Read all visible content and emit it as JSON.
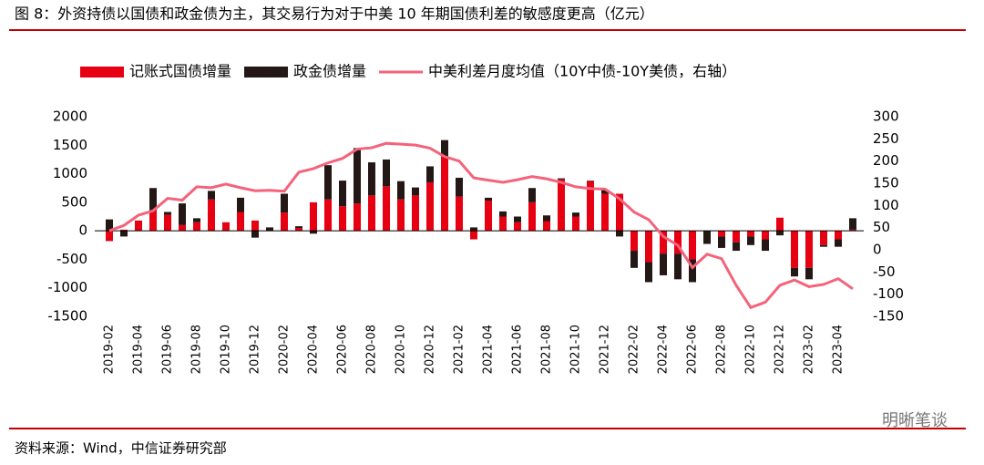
{
  "chart_data": {
    "type": "bar",
    "title": "图 8：外资持债以国债和政金债为主，其交易行为对于中美 10 年期国债利差的敏感度更高（亿元）",
    "source": "资料来源：Wind，中信证券研究部",
    "watermark": "明晰笔谈",
    "stacked": true,
    "categories": [
      "2019-02",
      null,
      "2019-04",
      null,
      "2019-06",
      null,
      "2019-08",
      null,
      "2019-10",
      null,
      "2019-12",
      null,
      "2020-02",
      null,
      "2020-04",
      null,
      "2020-06",
      null,
      "2020-08",
      null,
      "2020-10",
      null,
      "2020-12",
      null,
      "2021-02",
      null,
      "2021-04",
      null,
      "2021-06",
      null,
      "2021-08",
      null,
      "2021-10",
      null,
      "2021-12",
      null,
      "2022-02",
      null,
      "2022-04",
      null,
      "2022-06",
      null,
      "2022-08",
      null,
      "2022-10",
      null,
      "2022-12",
      null,
      "2023-02",
      null,
      "2023-04",
      null
    ],
    "series": [
      {
        "name": "记账式国债增量",
        "color": "#e60012",
        "type": "bar",
        "values": [
          -180,
          20,
          180,
          350,
          280,
          100,
          150,
          550,
          150,
          330,
          180,
          0,
          320,
          50,
          500,
          550,
          430,
          480,
          620,
          780,
          550,
          620,
          850,
          1300,
          600,
          -150,
          530,
          250,
          150,
          500,
          170,
          900,
          250,
          870,
          650,
          650,
          -350,
          -550,
          -400,
          -400,
          -500,
          0,
          -100,
          -200,
          -100,
          -150,
          230,
          -650,
          -650,
          -250,
          -150,
          20
        ]
      },
      {
        "name": "政金债增量",
        "color": "#231815",
        "type": "bar",
        "values": [
          200,
          -100,
          0,
          400,
          50,
          380,
          70,
          150,
          0,
          250,
          -120,
          60,
          330,
          30,
          -50,
          600,
          450,
          970,
          580,
          470,
          320,
          140,
          280,
          290,
          330,
          60,
          50,
          90,
          100,
          250,
          100,
          20,
          70,
          10,
          70,
          -100,
          -300,
          -350,
          -380,
          -450,
          -400,
          -230,
          -200,
          -150,
          -150,
          -200,
          -80,
          -150,
          -200,
          -30,
          -130,
          200
        ]
      },
      {
        "name": "中美利差月度均值（10Y中债-10Y美债，右轴）",
        "color": "#f4637b",
        "type": "line",
        "axis": "y2",
        "values": [
          43,
          55,
          78,
          88,
          116,
          112,
          142,
          140,
          148,
          140,
          133,
          134,
          132,
          175,
          183,
          196,
          206,
          227,
          230,
          240,
          238,
          236,
          229,
          210,
          200,
          162,
          157,
          152,
          158,
          165,
          160,
          152,
          142,
          138,
          137,
          115,
          85,
          68,
          30,
          10,
          -40,
          -10,
          -20,
          -80,
          -130,
          -118,
          -80,
          -68,
          -83,
          -78,
          -65,
          -88
        ]
      }
    ],
    "ylim": [
      -1500,
      2000
    ],
    "yticks": [
      -1500,
      -1000,
      -500,
      0,
      500,
      1000,
      1500,
      2000
    ],
    "y2lim": [
      -150,
      300
    ],
    "y2ticks": [
      -150,
      -100,
      -50,
      0,
      50,
      100,
      150,
      200,
      250,
      300
    ],
    "legend": "top"
  }
}
